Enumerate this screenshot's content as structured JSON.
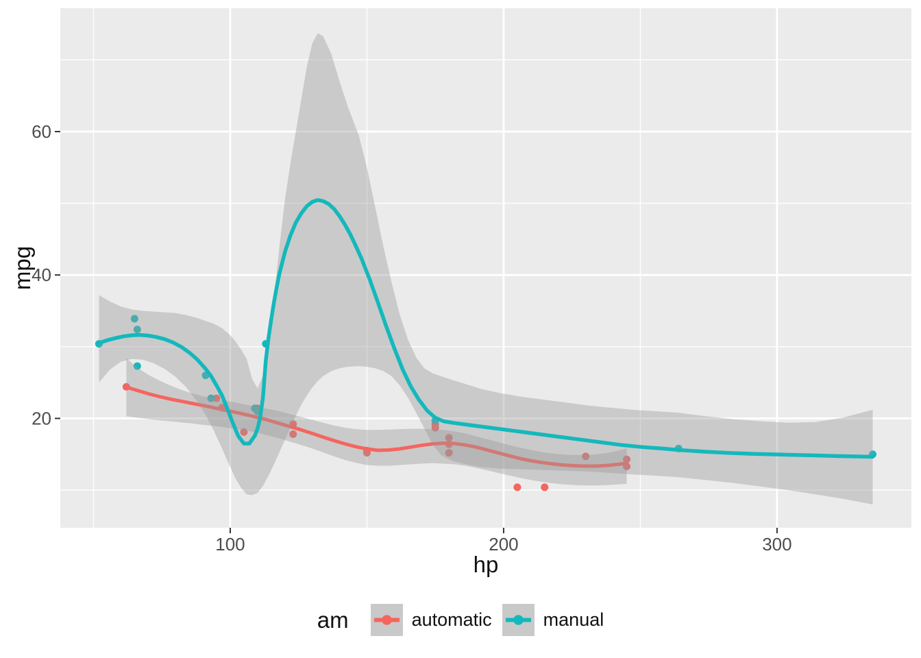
{
  "figure": {
    "background": "#FFFFFF",
    "panel_background": "#EBEBEB",
    "grid_color": "#FFFFFF",
    "ribbon_color": "#999999",
    "ribbon_opacity": 0.4,
    "axis_text_color": "#4D4D4D",
    "tick_color": "#333333",
    "legend_key_fill": "#C9C9C9"
  },
  "chart_data": {
    "type": "scatter",
    "title": "",
    "xlabel": "hp",
    "ylabel": "mpg",
    "x_domain": [
      37.85,
      349.15
    ],
    "y_domain": [
      4.75,
      77.2
    ],
    "x_ticks": [
      100,
      200,
      300
    ],
    "x_minor_ticks": [
      50,
      150,
      250
    ],
    "y_ticks": [
      20,
      40,
      60
    ],
    "y_minor_ticks": [
      10,
      30,
      50,
      70
    ],
    "grid": true,
    "legend": {
      "title": "am",
      "position": "bottom",
      "entries": [
        {
          "label": "automatic"
        },
        {
          "label": "manual"
        }
      ]
    },
    "series": [
      {
        "name": "automatic",
        "color": "#F5655F",
        "points": [
          [
            110,
            21.4
          ],
          [
            175,
            18.7
          ],
          [
            105,
            18.1
          ],
          [
            245,
            14.3
          ],
          [
            62,
            24.4
          ],
          [
            95,
            22.8
          ],
          [
            123,
            19.2
          ],
          [
            123,
            17.8
          ],
          [
            180,
            16.4
          ],
          [
            180,
            17.3
          ],
          [
            180,
            15.2
          ],
          [
            205,
            10.4
          ],
          [
            215,
            10.4
          ],
          [
            230,
            14.7
          ],
          [
            97,
            21.5
          ],
          [
            150,
            15.5
          ],
          [
            150,
            15.2
          ],
          [
            245,
            13.3
          ],
          [
            175,
            19.2
          ]
        ],
        "smooth": [
          [
            62,
            24.35
          ],
          [
            66,
            23.9
          ],
          [
            70,
            23.45
          ],
          [
            74,
            23.05
          ],
          [
            78,
            22.7
          ],
          [
            82,
            22.4
          ],
          [
            86,
            22.1
          ],
          [
            90,
            21.8
          ],
          [
            94,
            21.5
          ],
          [
            98,
            21.15
          ],
          [
            102,
            20.85
          ],
          [
            106,
            20.5
          ],
          [
            110,
            20.15
          ],
          [
            114,
            19.75
          ],
          [
            118,
            19.3
          ],
          [
            122,
            18.85
          ],
          [
            126,
            18.4
          ],
          [
            130,
            17.9
          ],
          [
            134,
            17.4
          ],
          [
            138,
            16.9
          ],
          [
            142,
            16.45
          ],
          [
            146,
            16.05
          ],
          [
            150,
            15.75
          ],
          [
            154,
            15.55
          ],
          [
            158,
            15.6
          ],
          [
            162,
            15.75
          ],
          [
            166,
            16.0
          ],
          [
            170,
            16.25
          ],
          [
            174,
            16.45
          ],
          [
            178,
            16.55
          ],
          [
            182,
            16.5
          ],
          [
            186,
            16.3
          ],
          [
            190,
            16.0
          ],
          [
            194,
            15.6
          ],
          [
            198,
            15.2
          ],
          [
            202,
            14.8
          ],
          [
            206,
            14.4
          ],
          [
            210,
            14.1
          ],
          [
            214,
            13.85
          ],
          [
            218,
            13.65
          ],
          [
            222,
            13.5
          ],
          [
            226,
            13.4
          ],
          [
            230,
            13.35
          ],
          [
            234,
            13.35
          ],
          [
            238,
            13.45
          ],
          [
            242,
            13.6
          ],
          [
            245,
            13.75
          ]
        ],
        "ribbon": [
          [
            62,
            20.3,
            28.4
          ],
          [
            66,
            20.1,
            27.1
          ],
          [
            70,
            19.9,
            26.1
          ],
          [
            74,
            19.75,
            25.3
          ],
          [
            78,
            19.6,
            24.6
          ],
          [
            82,
            19.45,
            24.0
          ],
          [
            86,
            19.3,
            23.5
          ],
          [
            90,
            19.1,
            23.1
          ],
          [
            94,
            18.95,
            22.8
          ],
          [
            98,
            18.75,
            22.5
          ],
          [
            102,
            18.5,
            22.2
          ],
          [
            106,
            18.3,
            21.9
          ],
          [
            110,
            18.0,
            21.6
          ],
          [
            114,
            17.6,
            21.3
          ],
          [
            118,
            17.2,
            21.0
          ],
          [
            122,
            16.75,
            20.6
          ],
          [
            126,
            16.3,
            20.2
          ],
          [
            130,
            15.8,
            19.8
          ],
          [
            134,
            15.25,
            19.4
          ],
          [
            138,
            14.7,
            19.0
          ],
          [
            142,
            14.2,
            18.7
          ],
          [
            146,
            13.8,
            18.5
          ],
          [
            150,
            13.5,
            18.4
          ],
          [
            154,
            13.4,
            18.4
          ],
          [
            158,
            13.4,
            18.45
          ],
          [
            162,
            13.5,
            18.5
          ],
          [
            166,
            13.6,
            18.55
          ],
          [
            170,
            13.7,
            18.55
          ],
          [
            174,
            13.75,
            18.5
          ],
          [
            178,
            13.7,
            18.4
          ],
          [
            182,
            13.6,
            18.2
          ],
          [
            186,
            13.4,
            17.9
          ],
          [
            190,
            13.1,
            17.5
          ],
          [
            194,
            12.75,
            17.1
          ],
          [
            198,
            12.4,
            16.7
          ],
          [
            202,
            12.05,
            16.3
          ],
          [
            206,
            11.7,
            15.9
          ],
          [
            210,
            11.4,
            15.6
          ],
          [
            214,
            11.15,
            15.3
          ],
          [
            218,
            10.95,
            15.1
          ],
          [
            222,
            10.8,
            14.95
          ],
          [
            226,
            10.7,
            14.9
          ],
          [
            230,
            10.65,
            14.9
          ],
          [
            234,
            10.65,
            15.0
          ],
          [
            238,
            10.7,
            15.2
          ],
          [
            242,
            10.8,
            15.5
          ],
          [
            245,
            10.9,
            15.8
          ]
        ]
      },
      {
        "name": "manual",
        "color": "#14B8BC",
        "points": [
          [
            110,
            21
          ],
          [
            110,
            21
          ],
          [
            93,
            22.8
          ],
          [
            66,
            32.4
          ],
          [
            52,
            30.4
          ],
          [
            65,
            33.9
          ],
          [
            66,
            27.3
          ],
          [
            91,
            26
          ],
          [
            113,
            30.4
          ],
          [
            264,
            15.8
          ],
          [
            175,
            19.7
          ],
          [
            335,
            15
          ],
          [
            109,
            21.4
          ]
        ],
        "smooth": [
          [
            52,
            30.5
          ],
          [
            55,
            30.9
          ],
          [
            58,
            31.2
          ],
          [
            61,
            31.45
          ],
          [
            64,
            31.6
          ],
          [
            67,
            31.65
          ],
          [
            70,
            31.55
          ],
          [
            73,
            31.35
          ],
          [
            76,
            31.05
          ],
          [
            79,
            30.6
          ],
          [
            82,
            30.0
          ],
          [
            85,
            29.2
          ],
          [
            88,
            28.2
          ],
          [
            91,
            26.9
          ],
          [
            93,
            25.9
          ],
          [
            95,
            24.6
          ],
          [
            97,
            23.2
          ],
          [
            99,
            21.3
          ],
          [
            101,
            19.3
          ],
          [
            103,
            17.5
          ],
          [
            105,
            16.5
          ],
          [
            107,
            16.5
          ],
          [
            109,
            17.6
          ],
          [
            110,
            18.6
          ],
          [
            111,
            20.2
          ],
          [
            112,
            23.0
          ],
          [
            113,
            28.0
          ],
          [
            114,
            31.2
          ],
          [
            115,
            33.8
          ],
          [
            116,
            36.2
          ],
          [
            117,
            38.3
          ],
          [
            118,
            40.2
          ],
          [
            120,
            43.2
          ],
          [
            122,
            45.5
          ],
          [
            124,
            47.3
          ],
          [
            126,
            48.6
          ],
          [
            128,
            49.6
          ],
          [
            130,
            50.2
          ],
          [
            132,
            50.45
          ],
          [
            134,
            50.3
          ],
          [
            136,
            49.9
          ],
          [
            138,
            49.2
          ],
          [
            140,
            48.2
          ],
          [
            142,
            47.0
          ],
          [
            144,
            45.6
          ],
          [
            146,
            44.0
          ],
          [
            148,
            42.3
          ],
          [
            151,
            39.4
          ],
          [
            154,
            36.2
          ],
          [
            157,
            32.9
          ],
          [
            160,
            29.8
          ],
          [
            163,
            26.9
          ],
          [
            166,
            24.5
          ],
          [
            169,
            22.6
          ],
          [
            172,
            21.1
          ],
          [
            175,
            20.1
          ],
          [
            178,
            19.6
          ],
          [
            182,
            19.35
          ],
          [
            188,
            19.05
          ],
          [
            195,
            18.7
          ],
          [
            203,
            18.3
          ],
          [
            211,
            17.9
          ],
          [
            219,
            17.5
          ],
          [
            227,
            17.1
          ],
          [
            235,
            16.7
          ],
          [
            243,
            16.3
          ],
          [
            251,
            16.0
          ],
          [
            258,
            15.8
          ],
          [
            264,
            15.6
          ],
          [
            272,
            15.4
          ],
          [
            282,
            15.2
          ],
          [
            292,
            15.05
          ],
          [
            302,
            14.95
          ],
          [
            312,
            14.85
          ],
          [
            322,
            14.75
          ],
          [
            335,
            14.65
          ]
        ],
        "ribbon": [
          [
            52,
            25.0,
            37.2
          ],
          [
            56,
            26.8,
            36.3
          ],
          [
            60,
            27.9,
            35.6
          ],
          [
            64,
            28.3,
            35.2
          ],
          [
            68,
            28.2,
            35.0
          ],
          [
            72,
            27.7,
            34.9
          ],
          [
            76,
            26.9,
            34.8
          ],
          [
            80,
            25.8,
            34.7
          ],
          [
            84,
            24.3,
            34.4
          ],
          [
            88,
            22.3,
            34.0
          ],
          [
            91,
            20.5,
            33.6
          ],
          [
            94,
            18.3,
            33.2
          ],
          [
            97,
            15.8,
            32.6
          ],
          [
            100,
            13.2,
            31.6
          ],
          [
            102,
            11.6,
            30.7
          ],
          [
            104,
            10.3,
            29.6
          ],
          [
            106,
            9.4,
            28.3
          ],
          [
            108,
            9.3,
            25.5
          ],
          [
            110,
            9.6,
            24.2
          ],
          [
            112,
            10.6,
            26.0
          ],
          [
            114,
            12.0,
            31.0
          ],
          [
            116,
            13.6,
            37.0
          ],
          [
            118,
            15.3,
            44.0
          ],
          [
            120,
            17.0,
            50.5
          ],
          [
            122,
            18.7,
            55.5
          ],
          [
            124,
            20.4,
            60.0
          ],
          [
            126,
            21.9,
            64.5
          ],
          [
            128,
            23.2,
            69.0
          ],
          [
            130,
            24.3,
            72.3
          ],
          [
            132,
            25.2,
            73.7
          ],
          [
            134,
            25.9,
            73.3
          ],
          [
            137,
            26.6,
            70.8
          ],
          [
            140,
            27.0,
            67.0
          ],
          [
            143,
            27.2,
            63.5
          ],
          [
            147,
            27.3,
            59.5
          ],
          [
            150,
            27.2,
            55.0
          ],
          [
            153,
            27.0,
            49.5
          ],
          [
            156,
            26.6,
            44.0
          ],
          [
            159,
            25.9,
            39.0
          ],
          [
            162,
            24.6,
            34.5
          ],
          [
            165,
            22.9,
            31.0
          ],
          [
            168,
            20.8,
            28.5
          ],
          [
            171,
            18.6,
            27.0
          ],
          [
            174,
            16.4,
            26.3
          ],
          [
            177,
            14.9,
            25.9
          ],
          [
            181,
            14.1,
            25.4
          ],
          [
            186,
            13.6,
            24.8
          ],
          [
            192,
            13.2,
            24.1
          ],
          [
            199,
            13.0,
            23.5
          ],
          [
            207,
            12.9,
            23.0
          ],
          [
            215,
            12.8,
            22.6
          ],
          [
            223,
            12.7,
            22.2
          ],
          [
            231,
            12.6,
            21.8
          ],
          [
            239,
            12.4,
            21.5
          ],
          [
            247,
            12.2,
            21.2
          ],
          [
            256,
            12.0,
            21.0
          ],
          [
            264,
            11.8,
            20.8
          ],
          [
            274,
            11.4,
            20.3
          ],
          [
            284,
            11.0,
            19.9
          ],
          [
            294,
            10.5,
            19.6
          ],
          [
            304,
            10.0,
            19.4
          ],
          [
            314,
            9.4,
            19.5
          ],
          [
            324,
            8.8,
            20.1
          ],
          [
            335,
            8.0,
            21.2
          ]
        ]
      }
    ]
  }
}
